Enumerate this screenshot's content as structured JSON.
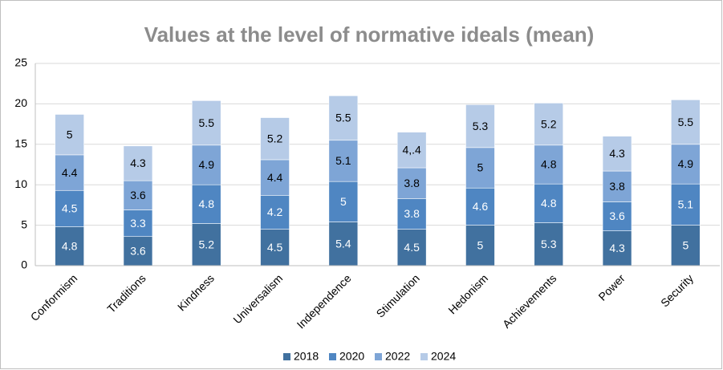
{
  "chart_data": {
    "type": "stacked_bar",
    "title": "Values at the level of normative ideals (mean)",
    "categories": [
      "Conformism",
      "Traditions",
      "Kindness",
      "Universalism",
      "Independence",
      "Stimulation",
      "Hedonism",
      "Achievements",
      "Power",
      "Security"
    ],
    "series": [
      {
        "name": "2018",
        "color": "#41719f",
        "label_color": "#ffffff",
        "values": [
          4.8,
          3.6,
          5.2,
          4.5,
          5.4,
          4.5,
          5,
          5.3,
          4.3,
          5
        ]
      },
      {
        "name": "2020",
        "color": "#4f86c2",
        "label_color": "#ffffff",
        "values": [
          4.5,
          3.3,
          4.8,
          4.2,
          5,
          3.8,
          4.6,
          4.8,
          3.6,
          5.1
        ]
      },
      {
        "name": "2022",
        "color": "#7ea5d6",
        "label_color": "#000000",
        "values": [
          4.4,
          3.6,
          4.9,
          4.4,
          5.1,
          3.8,
          5,
          4.8,
          3.8,
          4.9
        ]
      },
      {
        "name": "2024",
        "color": "#b6cbe7",
        "label_color": "#000000",
        "values": [
          5,
          4.3,
          5.5,
          5.2,
          5.5,
          4.4,
          5.3,
          5.2,
          4.3,
          5.5
        ],
        "value_labels": [
          "5",
          "4.3",
          "5.5",
          "5.2",
          "5.5",
          "4,.4",
          "5.3",
          "5.2",
          "4.3",
          "5.5"
        ]
      }
    ],
    "ylim": [
      0,
      25
    ],
    "yticks": [
      0,
      5,
      10,
      15,
      20,
      25
    ],
    "grid": true,
    "legend": "bottom"
  }
}
